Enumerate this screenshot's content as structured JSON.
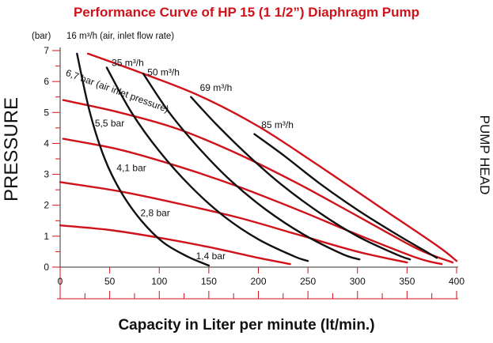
{
  "title": "Performance Curve of HP 15 (1  1/2”) Diaphragm Pump",
  "xlabel": "Capacity in Liter per minute (lt/min.)",
  "ylabel": "PRESSURE",
  "right_label": "PUMP HEAD",
  "y_unit": "(bar)",
  "flow_note": "16 m³/h (air, inlet flow rate)",
  "colors": {
    "air_pressure_curves": "#d0121b",
    "air_flow_curves": "#111111",
    "axis_ticks": "#d0121b"
  },
  "chart_data": {
    "type": "line",
    "title": "Performance Curve of HP 15 (1  1/2”) Diaphragm Pump",
    "xlabel": "Capacity in Liter per minute (lt/min.)",
    "ylabel": "PRESSURE",
    "xlim": [
      0,
      400
    ],
    "ylim": [
      0,
      7
    ],
    "x_ticks": [
      0,
      50,
      100,
      150,
      200,
      250,
      300,
      350,
      400
    ],
    "y_ticks": [
      0,
      1,
      2,
      3,
      4,
      5,
      6,
      7
    ],
    "grid": false,
    "series": [
      {
        "name": "16 m³/h (air, inlet flow rate)",
        "group": "air_flow",
        "x": [
          17,
          30,
          45,
          62,
          82,
          104,
          128,
          150
        ],
        "y": [
          6.9,
          5.0,
          3.5,
          2.4,
          1.5,
          0.8,
          0.35,
          0.05
        ]
      },
      {
        "name": "35 m³/h",
        "group": "air_flow",
        "x": [
          47,
          72,
          100,
          132,
          165,
          200,
          236,
          250
        ],
        "y": [
          6.45,
          5.0,
          3.75,
          2.6,
          1.65,
          0.9,
          0.35,
          0.2
        ]
      },
      {
        "name": "50 m³/h",
        "group": "air_flow",
        "x": [
          84,
          110,
          140,
          172,
          208,
          246,
          285,
          302
        ],
        "y": [
          6.25,
          5.0,
          3.85,
          2.8,
          1.85,
          1.05,
          0.42,
          0.25
        ]
      },
      {
        "name": "69 m³/h",
        "group": "air_flow",
        "x": [
          132,
          158,
          190,
          224,
          262,
          300,
          340,
          353
        ],
        "y": [
          5.5,
          4.6,
          3.6,
          2.65,
          1.75,
          1.0,
          0.4,
          0.25
        ]
      },
      {
        "name": "85 m³/h",
        "group": "air_flow",
        "x": [
          196,
          226,
          262,
          300,
          340,
          372,
          380
        ],
        "y": [
          4.3,
          3.6,
          2.7,
          1.85,
          1.05,
          0.45,
          0.3
        ]
      },
      {
        "name": "6,7 bar (air inlet pressure)",
        "group": "air_pressure",
        "x": [
          28,
          80,
          140,
          200,
          260,
          320,
          380,
          400
        ],
        "y": [
          6.9,
          6.3,
          5.55,
          4.55,
          3.3,
          2.0,
          0.7,
          0.2
        ]
      },
      {
        "name": "5,5 bar",
        "group": "air_pressure",
        "x": [
          3,
          60,
          120,
          180,
          240,
          300,
          360,
          396
        ],
        "y": [
          5.4,
          5.0,
          4.45,
          3.65,
          2.7,
          1.65,
          0.6,
          0.15
        ]
      },
      {
        "name": "4,1 bar",
        "group": "air_pressure",
        "x": [
          3,
          60,
          120,
          180,
          240,
          300,
          360,
          385
        ],
        "y": [
          4.15,
          3.8,
          3.25,
          2.6,
          1.85,
          1.05,
          0.3,
          0.1
        ]
      },
      {
        "name": "2,8 bar",
        "group": "air_pressure",
        "x": [
          0,
          60,
          120,
          180,
          240,
          300,
          350
        ],
        "y": [
          2.75,
          2.45,
          2.05,
          1.6,
          1.05,
          0.5,
          0.15
        ]
      },
      {
        "name": "1,4 bar",
        "group": "air_pressure",
        "x": [
          0,
          50,
          100,
          150,
          200,
          232
        ],
        "y": [
          1.35,
          1.2,
          0.95,
          0.65,
          0.3,
          0.1
        ]
      }
    ],
    "annotations": [
      {
        "text": "35 m³/h",
        "x": 52,
        "y": 6.5
      },
      {
        "text": "50 m³/h",
        "x": 88,
        "y": 6.2
      },
      {
        "text": "69 m³/h",
        "x": 141,
        "y": 5.7
      },
      {
        "text": "85 m³/h",
        "x": 203,
        "y": 4.5
      },
      {
        "text": "6,7 bar (air inlet pressure)",
        "x": 5,
        "y": 6.2,
        "rotation": 20
      },
      {
        "text": "5,5 bar",
        "x": 35,
        "y": 4.55
      },
      {
        "text": "4,1 bar",
        "x": 57,
        "y": 3.1
      },
      {
        "text": "2,8 bar",
        "x": 81,
        "y": 1.65
      },
      {
        "text": "1,4 bar",
        "x": 137,
        "y": 0.25
      }
    ]
  }
}
